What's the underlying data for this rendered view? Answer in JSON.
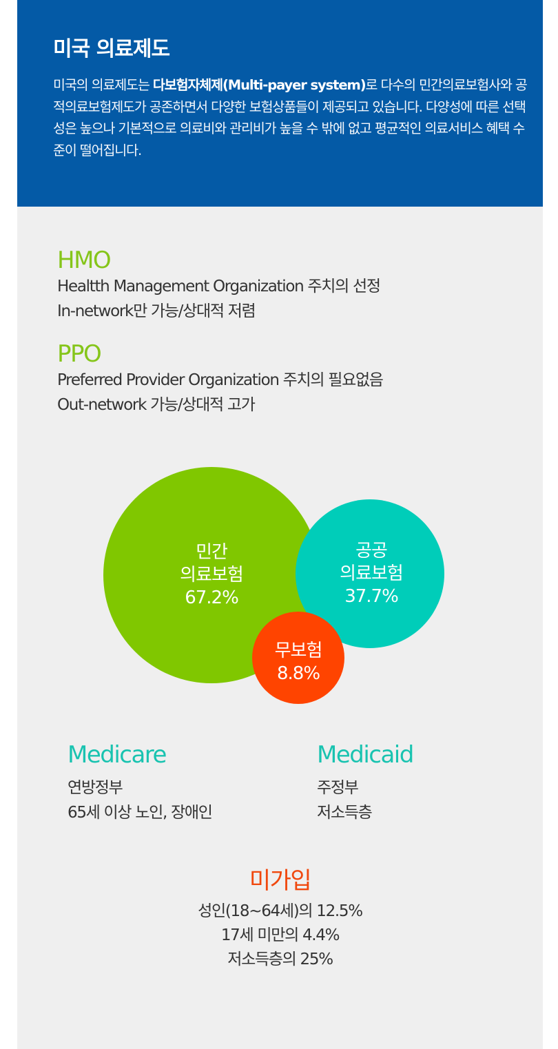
{
  "header": {
    "title": "미국 의료제도",
    "desc_before": "미국의 의료제도는 ",
    "desc_bold": "다보험자체제(Multi-payer system)",
    "desc_after": "로 다수의 민간의료보험사와 공적의료보험제도가 공존하면서 다양한 보험상품들이 제공되고 있습니다. 다양성에 따른 선택성은 높으나 기본적으로 의료비와 관리비가 높을 수 밖에 없고 평균적인 의료서비스 혜택 수준이 떨어집니다."
  },
  "plans": [
    {
      "title": "HMO",
      "lines": [
        "Healtth Management Organization 주치의 선정",
        "In-network만 가능/상대적 저렴"
      ]
    },
    {
      "title": "PPO",
      "lines": [
        "Preferred Provider Organization 주치의 필요없음",
        "Out-network 가능/상대적 고가"
      ]
    }
  ],
  "colors": {
    "header_bg": "#045aa6",
    "green": "#85c51a",
    "teal": "#19c3b0",
    "orange": "#f0480e",
    "card_bg": "#efefef"
  },
  "chart_data": {
    "type": "bubble",
    "items": [
      {
        "label": "민간\n의료보험",
        "value": 67.2,
        "value_label": "67.2%",
        "color": "#80c700"
      },
      {
        "label": "공공\n의료보험",
        "value": 37.7,
        "value_label": "37.7%",
        "color": "#00cdb9"
      },
      {
        "label": "무보험",
        "value": 8.8,
        "value_label": "8.8%",
        "color": "#ff4400"
      }
    ]
  },
  "programs": [
    {
      "title": "Medicare",
      "lines": [
        "연방정부",
        "65세 이상 노인, 장애인"
      ]
    },
    {
      "title": "Medicaid",
      "lines": [
        "주정부",
        "저소득층"
      ]
    }
  ],
  "uninsured": {
    "title": "미가입",
    "lines": [
      "성인(18~64세)의 12.5%",
      "17세 미만의 4.4%",
      "저소득층의 25%"
    ]
  }
}
